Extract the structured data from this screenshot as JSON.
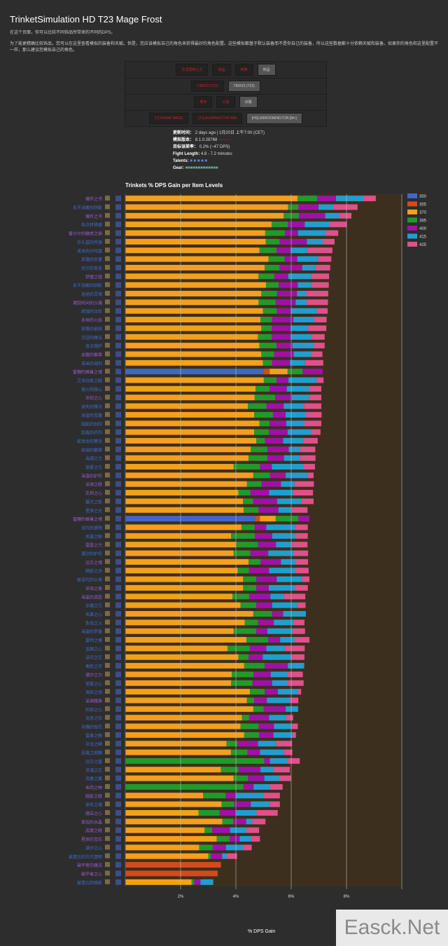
{
  "page": {
    "title": "TrinketSimulation HD T23 Mage Frost",
    "intro1": "在这个页面，你可以比较不同饰品所带来的不同的DPS。",
    "intro2": "为了能更精确比较饰品，您可以在这里查看模拟的装备和天赋。但是，您应该模拟自己的角色来获得最好的角色配置。这些模拟都基于默认装备而不是你自己的装备，所以这些数据都十分依赖天赋和装备。如果你的角色和这里配置不一样，那么建议您模拟自己的角色。"
  },
  "filters": {
    "rows": [
      [
        {
          "label": "艾泽里特之力",
          "active": false
        },
        {
          "label": "饰品",
          "active": false
        },
        {
          "label": "种族",
          "active": false
        },
        {
          "label": "饰品",
          "active": true
        }
      ],
      [
        {
          "label": "TIER23 (T23)",
          "active": false
        },
        {
          "label": "TIER23 (T23)",
          "active": true
        }
      ],
      [
        {
          "label": "奥术",
          "active": false
        },
        {
          "label": "火焰",
          "active": false
        },
        {
          "label": "冰霜",
          "active": true
        }
      ],
      [
        {
          "label": "[T] FRANK MAGE",
          "active": false
        },
        {
          "label": "[T1] ALMANACTOR AIM",
          "active": false
        },
        {
          "label": "[HS] EBROOMINGTON [M+]",
          "active": true
        }
      ]
    ]
  },
  "meta": {
    "updated_label": "更新时间：",
    "updated_value": "2 days ago | 1月20日 上午7:00 (CET)",
    "version_label": "模拟版本：",
    "version_value": "8.1.0.28768",
    "error_label": "目标误差率：",
    "error_value": "0.2% (~47 DPS)",
    "fight_label": "Fight Length:",
    "fight_value": "4.8 - 7.2 minutes",
    "talents_label": "Talents:",
    "gear_label": "Gear:"
  },
  "chart_data": {
    "type": "bar",
    "orientation": "horizontal-stacked",
    "title": "Trinkets % DPS Gain per Item Levels",
    "xlabel": "% DPS Gain",
    "ylabel": "",
    "xlim": [
      0,
      10
    ],
    "xticks": [
      {
        "value": 2,
        "label": "2%"
      },
      {
        "value": 4,
        "label": "4%"
      },
      {
        "value": 6,
        "label": "6%"
      },
      {
        "value": 8,
        "label": "8%"
      },
      {
        "value": 10,
        "label": ""
      }
    ],
    "grid": true,
    "legend_position": "right",
    "series": [
      {
        "name": "350",
        "color": "#3f67c8"
      },
      {
        "name": "355",
        "color": "#d44a1c"
      },
      {
        "name": "370",
        "color": "#f4a01c"
      },
      {
        "name": "385",
        "color": "#229a2a"
      },
      {
        "name": "400",
        "color": "#a010a8"
      },
      {
        "name": "415",
        "color": "#1f9fd0"
      },
      {
        "name": "425",
        "color": "#e0508a"
      }
    ],
    "rows": [
      {
        "name": "爆炸之书",
        "color": "#9b59d0",
        "seg": [
          0,
          0,
          6.23,
          0.71,
          0.68,
          0.99,
          0.45
        ]
      },
      {
        "name": "永不消散的阴影",
        "color": "#3d6ad6",
        "seg": [
          0,
          0,
          5.89,
          0.37,
          0.73,
          0.54,
          0.87
        ]
      },
      {
        "name": "爆炸之书",
        "color": "#9b59d0",
        "seg": [
          0,
          0,
          5.73,
          0.55,
          0.95,
          0.52,
          0.43
        ]
      },
      {
        "name": "奇点转移器",
        "color": "#3d6ad6",
        "seg": [
          0,
          0,
          5.29,
          0.6,
          0.6,
          0.89,
          0.63
        ]
      },
      {
        "name": "雷沙尔的魅惑之拥",
        "color": "#9b59d0",
        "seg": [
          0,
          0,
          5.06,
          0.71,
          0.48,
          0.99,
          0.46
        ]
      },
      {
        "name": "拉扎兹的炸弹",
        "color": "#3d6ad6",
        "seg": [
          0,
          0,
          5.08,
          0.5,
          0.99,
          0.57,
          0.43
        ]
      },
      {
        "name": "诺米的计时器",
        "color": "#3d6ad6",
        "seg": [
          0,
          0,
          4.85,
          0.62,
          0.51,
          0.62,
          0.89
        ]
      },
      {
        "name": "部落的支援",
        "color": "#3d6ad6",
        "seg": [
          0,
          0,
          5.18,
          0.58,
          0.46,
          0.75,
          0.48
        ]
      },
      {
        "name": "托尔的发条",
        "color": "#3d6ad6",
        "seg": [
          0,
          0,
          5.04,
          0.54,
          0.82,
          0.48,
          0.53
        ]
      },
      {
        "name": "梦魇之镜",
        "color": "#9b59d0",
        "seg": [
          0,
          0,
          4.82,
          0.57,
          0.5,
          0.84,
          0.64
        ]
      },
      {
        "name": "永不消散的阴影",
        "color": "#3d6ad6",
        "seg": [
          0,
          0,
          5.09,
          0.46,
          0.69,
          0.49,
          0.63
        ]
      },
      {
        "name": "迷途的灵魂",
        "color": "#3d6ad6",
        "seg": [
          0,
          0,
          4.92,
          0.57,
          0.72,
          0.33,
          0.8
        ]
      },
      {
        "name": "凝固时间的沙漏",
        "color": "#9b59d0",
        "seg": [
          0,
          0,
          4.82,
          0.62,
          0.72,
          0.4,
          0.77
        ]
      },
      {
        "name": "腐蚀的法杖",
        "color": "#3d6ad6",
        "seg": [
          0,
          0,
          4.98,
          0.5,
          0.51,
          0.94,
          0.39
        ]
      },
      {
        "name": "永恒的火焰",
        "color": "#9b59d0",
        "seg": [
          0,
          0,
          4.89,
          0.42,
          0.77,
          0.75,
          0.45
        ]
      },
      {
        "name": "部落的钢铁",
        "color": "#3d6ad6",
        "seg": [
          0,
          0,
          4.92,
          0.38,
          0.68,
          0.62,
          0.67
        ]
      },
      {
        "name": "沉没的魔法",
        "color": "#3d6ad6",
        "seg": [
          0,
          0,
          4.8,
          0.5,
          0.68,
          0.77,
          0.46
        ]
      },
      {
        "name": "奇点熔炉",
        "color": "#3d6ad6",
        "seg": [
          0,
          0,
          4.85,
          0.62,
          0.57,
          0.77,
          0.4
        ]
      },
      {
        "name": "血腥的徽章",
        "color": "#9b59d0",
        "seg": [
          0,
          0,
          4.92,
          0.46,
          0.71,
          0.63,
          0.41
        ]
      },
      {
        "name": "诺米的调剂",
        "color": "#3d6ad6",
        "seg": [
          0,
          0,
          4.98,
          0.33,
          0.65,
          0.54,
          0.66
        ]
      },
      {
        "name": "蜜糖的蜂巢之魂",
        "color": "#9b59d0",
        "seg": [
          5.01,
          0.21,
          0.65,
          0.54,
          0.73,
          0,
          0
        ]
      },
      {
        "name": "艾泽拉斯之眼",
        "color": "#3d6ad6",
        "seg": [
          0,
          0,
          5.01,
          0.46,
          0.43,
          1.02,
          0.25
        ]
      },
      {
        "name": "熔火的核心",
        "color": "#3d6ad6",
        "seg": [
          0,
          0,
          4.71,
          0.51,
          0.62,
          0.82,
          0.43
        ]
      },
      {
        "name": "冰封之心",
        "color": "#9b59d0",
        "seg": [
          0,
          0,
          4.68,
          0.74,
          0.6,
          0.62,
          0.45
        ]
      },
      {
        "name": "迷失的魔法",
        "color": "#3d6ad6",
        "seg": [
          0,
          0,
          4.43,
          0.68,
          0.62,
          0.73,
          0.63
        ]
      },
      {
        "name": "海盗的宝藏",
        "color": "#3d6ad6",
        "seg": [
          0,
          0,
          4.66,
          0.68,
          0.46,
          0.74,
          0.56
        ]
      },
      {
        "name": "暗影的刻印",
        "color": "#3d6ad6",
        "seg": [
          0,
          0,
          4.85,
          0.37,
          0.6,
          0.65,
          0.62
        ]
      },
      {
        "name": "剧毒的药剂",
        "color": "#3d6ad6",
        "seg": [
          0,
          0,
          4.66,
          0.53,
          0.68,
          0.85,
          0.34
        ]
      },
      {
        "name": "蛇颈龙的獠牙",
        "color": "#3d6ad6",
        "seg": [
          0,
          0,
          4.74,
          0.31,
          0.66,
          0.74,
          0.51
        ]
      },
      {
        "name": "纳迦的徽章",
        "color": "#3d6ad6",
        "seg": [
          0,
          0,
          4.54,
          0.6,
          0.77,
          0.4,
          0.56
        ]
      },
      {
        "name": "海潮之力",
        "color": "#3d6ad6",
        "seg": [
          0,
          0,
          4.46,
          0.68,
          0.6,
          0.57,
          0.57
        ]
      },
      {
        "name": "迷雾之刃",
        "color": "#3d6ad6",
        "seg": [
          0,
          0,
          3.92,
          0.95,
          0.43,
          1.14,
          0.42
        ]
      },
      {
        "name": "海藻的护符",
        "color": "#9b59d0",
        "seg": [
          0,
          0,
          4.63,
          0.6,
          0.57,
          0.8,
          0.21
        ]
      },
      {
        "name": "深渊之眼",
        "color": "#9b59d0",
        "seg": [
          0,
          0,
          4.4,
          0.53,
          0.7,
          0.49,
          0.7
        ]
      },
      {
        "name": "灰烬之心",
        "color": "#9b59d0",
        "seg": [
          0,
          0,
          4.09,
          0.43,
          0.68,
          0.87,
          0.72
        ]
      },
      {
        "name": "暮光之影",
        "color": "#3d6ad6",
        "seg": [
          0,
          0,
          4.26,
          0.36,
          0.87,
          0.87,
          0.45
        ]
      },
      {
        "name": "星辰之光",
        "color": "#3d6ad6",
        "seg": [
          0,
          0,
          4.28,
          0.54,
          0.72,
          0.48,
          0.57
        ]
      },
      {
        "name": "蜜糖的蜂巢之魂",
        "color": "#9b59d0",
        "seg": [
          4.69,
          0.18,
          0.57,
          0.82,
          0.4,
          0,
          0
        ]
      },
      {
        "name": "诅咒的遗物",
        "color": "#3d6ad6",
        "seg": [
          0,
          0,
          4.2,
          0.48,
          0.42,
          1.03,
          0.47
        ]
      },
      {
        "name": "风暴之眼",
        "color": "#3d6ad6",
        "seg": [
          0,
          0,
          3.83,
          0.86,
          0.62,
          0.84,
          0.45
        ]
      },
      {
        "name": "雷霆之力",
        "color": "#9b59d0",
        "seg": [
          0,
          0,
          4.0,
          0.8,
          0.65,
          0.57,
          0.57
        ]
      },
      {
        "name": "潮汐的护符",
        "color": "#3d6ad6",
        "seg": [
          0,
          0,
          3.92,
          0.6,
          0.65,
          0.92,
          0.52
        ]
      },
      {
        "name": "远古之魂",
        "color": "#9b59d0",
        "seg": [
          0,
          0,
          4.46,
          0.43,
          0.74,
          0.52,
          0.46
        ]
      },
      {
        "name": "暗影之牙",
        "color": "#3d6ad6",
        "seg": [
          0,
          0,
          4.07,
          0.4,
          0.73,
          0.94,
          0.49
        ]
      },
      {
        "name": "被诅咒的头骨",
        "color": "#3d6ad6",
        "seg": [
          0,
          0,
          4.26,
          0.48,
          0.74,
          0.91,
          0.27
        ]
      },
      {
        "name": "深海之珠",
        "color": "#9b59d0",
        "seg": [
          0,
          0,
          4.26,
          0.48,
          0.45,
          0.94,
          0.47
        ]
      },
      {
        "name": "海盗的酒壶",
        "color": "#9b59d0",
        "seg": [
          0,
          0,
          3.88,
          0.6,
          0.77,
          0.49,
          0.77
        ]
      },
      {
        "name": "冰霜之刃",
        "color": "#3d6ad6",
        "seg": [
          0,
          0,
          4.17,
          0.57,
          0.57,
          0.91,
          0.3
        ]
      },
      {
        "name": "风暴之心",
        "color": "#3d6ad6",
        "seg": [
          0,
          0,
          4.63,
          0.68,
          0.4,
          0.82,
          0
        ]
      },
      {
        "name": "永恒之火",
        "color": "#3d6ad6",
        "seg": [
          0,
          0,
          4.32,
          0.48,
          0.57,
          0.71,
          0.4
        ]
      },
      {
        "name": "海盗的罗盘",
        "color": "#3d6ad6",
        "seg": [
          0,
          0,
          3.92,
          0.82,
          0.4,
          0.91,
          0.45
        ]
      },
      {
        "name": "雷鸣之锤",
        "color": "#3d6ad6",
        "seg": [
          0,
          0,
          4.38,
          0.79,
          0.43,
          0.52,
          0.54
        ]
      },
      {
        "name": "龙鳞之心",
        "color": "#3d6ad6",
        "seg": [
          0,
          0,
          3.7,
          0.8,
          0.6,
          0.68,
          0.71
        ]
      },
      {
        "name": "诅咒之石",
        "color": "#3d6ad6",
        "seg": [
          0,
          0,
          4.09,
          0.37,
          0.51,
          1.03,
          0.48
        ]
      },
      {
        "name": "毒蛇之牙",
        "color": "#3d6ad6",
        "seg": [
          0,
          0,
          4.3,
          0.74,
          0.84,
          0.59,
          0
        ]
      },
      {
        "name": "潮汐之力",
        "color": "#9b59d0",
        "seg": [
          0,
          0,
          3.85,
          0.79,
          0.62,
          0.6,
          0.56
        ]
      },
      {
        "name": "迷雾之心",
        "color": "#3d6ad6",
        "seg": [
          0,
          0,
          3.83,
          0.77,
          0.71,
          0.57,
          0.57
        ]
      },
      {
        "name": "海妖之泪",
        "color": "#3d6ad6",
        "seg": [
          0,
          0,
          4.51,
          0.53,
          0.48,
          0.72,
          0.12
        ]
      },
      {
        "name": "深渊魔典",
        "color": "#9b59d0",
        "seg": [
          0,
          0,
          4.4,
          0.26,
          0.46,
          0.84,
          0.3
        ]
      },
      {
        "name": "烈焰之心",
        "color": "#3d6ad6",
        "seg": [
          0,
          0,
          4.63,
          0.37,
          0.8,
          0.45,
          0
        ]
      },
      {
        "name": "龙息之石",
        "color": "#3d6ad6",
        "seg": [
          0,
          0,
          4.22,
          0.26,
          0.72,
          0.62,
          0.25
        ]
      },
      {
        "name": "冰霜的宝石",
        "color": "#3d6ad6",
        "seg": [
          0,
          0,
          4.17,
          0.65,
          0.56,
          0.63,
          0.23
        ]
      },
      {
        "name": "雷暴之眼",
        "color": "#3d6ad6",
        "seg": [
          0,
          0,
          4.3,
          0.54,
          0.52,
          0.69,
          0.12
        ]
      },
      {
        "name": "巨龙之鳞",
        "color": "#3d6ad6",
        "seg": [
          0,
          0,
          3.66,
          0.4,
          0.74,
          0.66,
          0.57
        ]
      },
      {
        "name": "巫毒之图腾",
        "color": "#3d6ad6",
        "seg": [
          0,
          0,
          3.82,
          0.6,
          0.45,
          0.87,
          0.3
        ]
      },
      {
        "name": "远古之墓",
        "color": "#3d6ad6",
        "seg": [
          0,
          0,
          0,
          5.03,
          0.2,
          0.63,
          0.45
        ]
      },
      {
        "name": "灵魂之石",
        "color": "#3d6ad6",
        "seg": [
          0,
          0,
          3.46,
          0.63,
          0.8,
          0.46,
          0.6
        ]
      },
      {
        "name": "风暴之翼",
        "color": "#3d6ad6",
        "seg": [
          0,
          0,
          3.92,
          0.52,
          0.59,
          0.54,
          0.42
        ]
      },
      {
        "name": "血肉之种",
        "color": "#9b59d0",
        "seg": [
          0,
          0,
          0,
          4.27,
          0.37,
          0.6,
          0.45
        ]
      },
      {
        "name": "暗影之眼",
        "color": "#9b59d0",
        "seg": [
          0,
          0,
          2.81,
          0.82,
          0.37,
          0.99,
          0.6
        ]
      },
      {
        "name": "迷失之魂",
        "color": "#3d6ad6",
        "seg": [
          0,
          0,
          3.48,
          0.46,
          0.6,
          0.68,
          0.37
        ]
      },
      {
        "name": "熔岩之心",
        "color": "#9b59d0",
        "seg": [
          0,
          0,
          2.65,
          0.76,
          0.6,
          0.74,
          0.76
        ]
      },
      {
        "name": "泰坦的水晶",
        "color": "#9b59d0",
        "seg": [
          0,
          0,
          3.51,
          0.4,
          0.46,
          0.22,
          0.48
        ]
      },
      {
        "name": "恶魔之眼",
        "color": "#9b59d0",
        "seg": [
          0,
          0,
          2.87,
          0.27,
          0.65,
          0.59,
          0.46
        ]
      },
      {
        "name": "星辰的宝石",
        "color": "#9b59d0",
        "seg": [
          0,
          0,
          3.31,
          0.46,
          0.37,
          0.42,
          0.31
        ]
      },
      {
        "name": "潮汐之心",
        "color": "#3d6ad6",
        "seg": [
          0,
          0,
          2.67,
          0.49,
          0.48,
          0.62,
          0.31
        ]
      },
      {
        "name": "被遗忘的古代遗物",
        "color": "#3d6ad6",
        "seg": [
          0,
          0,
          3.0,
          0.1,
          0.4,
          0.17,
          0.37
        ]
      },
      {
        "name": "破坏者的魔法",
        "color": "#9b59d0",
        "seg": [
          0,
          3.46,
          0,
          0,
          0,
          0,
          0
        ]
      },
      {
        "name": "破坏者之心",
        "color": "#9b59d0",
        "seg": [
          0,
          3.34,
          0,
          0,
          0,
          0,
          0
        ]
      },
      {
        "name": "被遗忘的暗影",
        "color": "#3d6ad6",
        "seg": [
          0,
          0,
          2.4,
          0.09,
          0.23,
          0.46,
          0
        ]
      }
    ]
  }
}
